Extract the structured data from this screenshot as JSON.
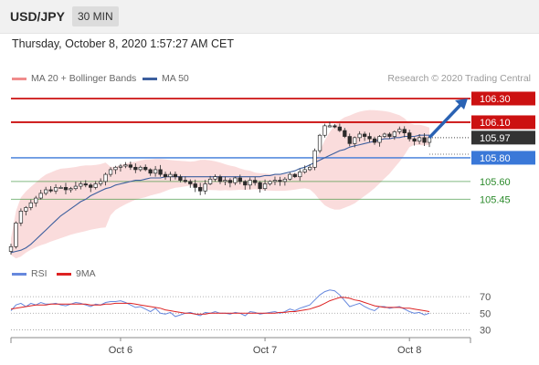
{
  "header": {
    "symbol": "USD/JPY",
    "timeframe": "30 MIN"
  },
  "datetime": "Thursday, October 8, 2020 1:57:27 AM CET",
  "legend": [
    {
      "label": "MA 20 + Bollinger Bands",
      "color": "#f08c8c"
    },
    {
      "label": "MA 50",
      "color": "#3d5f9e"
    }
  ],
  "credit": "Research © 2020 Trading Central",
  "rsi_legend": [
    {
      "label": "RSI",
      "color": "#6688dd"
    },
    {
      "label": "9MA",
      "color": "#dd2222"
    }
  ],
  "colors": {
    "resistance": "#cc1111",
    "current": "#333333",
    "pivot": "#3a78d8",
    "support": "#2b8a2b",
    "arrow": "#2a62b3",
    "bands": "#f8d0d0"
  },
  "chart_data": {
    "type": "candlestick",
    "ylim": [
      104.96,
      106.4
    ],
    "x_ticks": [
      "Oct 6",
      "Oct 7",
      "Oct 8"
    ],
    "x_tick_index": [
      22,
      51,
      80
    ],
    "levels": [
      {
        "label": "106.30",
        "value": 106.3,
        "kind": "resistance"
      },
      {
        "label": "106.10",
        "value": 106.1,
        "kind": "resistance"
      },
      {
        "label": "105.97",
        "value": 105.97,
        "kind": "current"
      },
      {
        "label": "105.80",
        "value": 105.8,
        "kind": "pivot"
      },
      {
        "label": "105.60",
        "value": 105.6,
        "kind": "support"
      },
      {
        "label": "105.45",
        "value": 105.45,
        "kind": "support"
      }
    ],
    "forecast_target": 106.3,
    "closes": [
      105.05,
      105.25,
      105.35,
      105.38,
      105.42,
      105.46,
      105.5,
      105.53,
      105.52,
      105.55,
      105.55,
      105.53,
      105.54,
      105.56,
      105.58,
      105.57,
      105.55,
      105.58,
      105.6,
      105.66,
      105.7,
      105.72,
      105.73,
      105.74,
      105.72,
      105.7,
      105.72,
      105.7,
      105.67,
      105.7,
      105.66,
      105.64,
      105.66,
      105.64,
      105.61,
      105.6,
      105.58,
      105.55,
      105.52,
      105.58,
      105.62,
      105.64,
      105.6,
      105.61,
      105.59,
      105.63,
      105.6,
      105.57,
      105.61,
      105.59,
      105.54,
      105.58,
      105.6,
      105.61,
      105.6,
      105.62,
      105.66,
      105.64,
      105.68,
      105.7,
      105.72,
      105.86,
      105.99,
      106.07,
      106.07,
      106.06,
      106.03,
      105.98,
      105.92,
      105.97,
      106.0,
      105.98,
      105.96,
      105.93,
      105.98,
      106.0,
      105.98,
      106.02,
      106.04,
      106.01,
      105.96,
      105.94,
      105.97,
      105.93,
      105.97
    ],
    "ma50": [
      105.0,
      105.01,
      105.02,
      105.04,
      105.07,
      105.11,
      105.15,
      105.19,
      105.23,
      105.27,
      105.31,
      105.34,
      105.37,
      105.4,
      105.43,
      105.45,
      105.48,
      105.5,
      105.52,
      105.54,
      105.55,
      105.57,
      105.58,
      105.59,
      105.6,
      105.61,
      105.61,
      105.62,
      105.63,
      105.63,
      105.63,
      105.64,
      105.64,
      105.64,
      105.64,
      105.64,
      105.64,
      105.64,
      105.64,
      105.64,
      105.64,
      105.64,
      105.64,
      105.64,
      105.64,
      105.64,
      105.64,
      105.64,
      105.64,
      105.64,
      105.64,
      105.65,
      105.65,
      105.66,
      105.66,
      105.67,
      105.68,
      105.69,
      105.71,
      105.72,
      105.74,
      105.76,
      105.78,
      105.8,
      105.82,
      105.84,
      105.86,
      105.87,
      105.89,
      105.9,
      105.91,
      105.92,
      105.93,
      105.94,
      105.95,
      105.96,
      105.96,
      105.97,
      105.97,
      105.98,
      105.98,
      105.98,
      105.99,
      105.99,
      105.99
    ],
    "rsi": [
      53,
      60,
      62,
      58,
      62,
      60,
      63,
      61,
      61,
      62,
      60,
      59,
      61,
      63,
      62,
      60,
      58,
      61,
      60,
      63,
      64,
      64,
      65,
      63,
      60,
      57,
      58,
      55,
      52,
      56,
      50,
      49,
      51,
      46,
      48,
      50,
      51,
      49,
      47,
      51,
      50,
      52,
      50,
      50,
      49,
      51,
      50,
      47,
      52,
      51,
      49,
      50,
      51,
      52,
      50,
      52,
      55,
      53,
      56,
      58,
      60,
      66,
      72,
      76,
      78,
      77,
      72,
      65,
      58,
      60,
      62,
      58,
      55,
      53,
      58,
      58,
      56,
      57,
      58,
      55,
      52,
      50,
      51,
      48,
      50
    ],
    "rsi_ma": [
      55,
      56,
      57,
      58,
      59,
      60,
      60,
      60,
      61,
      61,
      61,
      61,
      61,
      61,
      61,
      61,
      60,
      60,
      60,
      61,
      61,
      62,
      62,
      62,
      62,
      61,
      60,
      59,
      58,
      57,
      56,
      54,
      53,
      52,
      51,
      50,
      50,
      49,
      49,
      49,
      50,
      50,
      50,
      50,
      50,
      50,
      50,
      50,
      50,
      50,
      50,
      50,
      50,
      50,
      51,
      51,
      52,
      52,
      53,
      54,
      55,
      57,
      59,
      62,
      65,
      67,
      69,
      69,
      68,
      66,
      65,
      63,
      61,
      59,
      58,
      57,
      57,
      57,
      57,
      56,
      56,
      55,
      54,
      53,
      52
    ],
    "rsi_ylim": [
      25,
      80
    ],
    "rsi_levels": [
      70,
      50,
      30
    ]
  }
}
